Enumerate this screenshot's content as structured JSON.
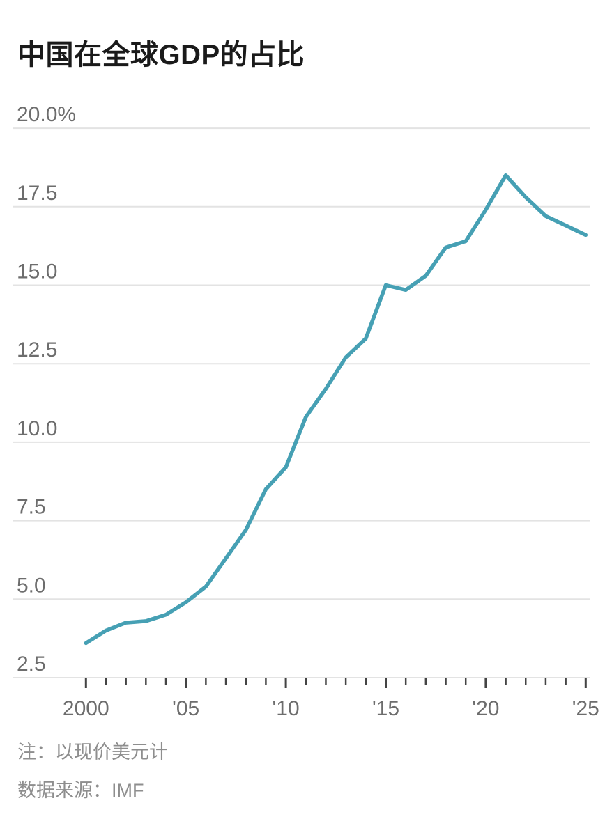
{
  "title": "中国在全球GDP的占比",
  "notes": {
    "note": "注：以现价美元计",
    "source": "数据来源：IMF"
  },
  "colors": {
    "line": "#46a0b4",
    "grid": "#e3e3e3",
    "tick": "#444444",
    "axis_label": "#6d6d6d",
    "title_text": "#1a1a1a",
    "footnote_text": "#8e8e8e"
  },
  "chart_data": {
    "type": "line",
    "title": "中国在全球GDP的占比",
    "unit": "%",
    "x": [
      2000,
      2001,
      2002,
      2003,
      2004,
      2005,
      2006,
      2007,
      2008,
      2009,
      2010,
      2011,
      2012,
      2013,
      2014,
      2015,
      2016,
      2017,
      2018,
      2019,
      2020,
      2021,
      2022,
      2023,
      2024,
      2025
    ],
    "values": [
      3.6,
      4.0,
      4.25,
      4.3,
      4.5,
      4.9,
      5.4,
      6.3,
      7.2,
      8.5,
      9.2,
      10.8,
      11.7,
      12.7,
      13.3,
      15.0,
      14.85,
      15.3,
      16.2,
      16.4,
      17.4,
      18.5,
      17.8,
      17.2,
      16.9,
      16.6
    ],
    "xlim": [
      2000,
      2025
    ],
    "ylim": [
      2.5,
      20.0
    ],
    "grid": true,
    "legend": "none",
    "yticks": [
      {
        "value": 20.0,
        "label": "20.0%"
      },
      {
        "value": 17.5,
        "label": "17.5"
      },
      {
        "value": 15.0,
        "label": "15.0"
      },
      {
        "value": 12.5,
        "label": "12.5"
      },
      {
        "value": 10.0,
        "label": "10.0"
      },
      {
        "value": 7.5,
        "label": "7.5"
      },
      {
        "value": 5.0,
        "label": "5.0"
      },
      {
        "value": 2.5,
        "label": "2.5"
      }
    ],
    "xticks_labeled": [
      {
        "value": 2000,
        "label": "2000"
      },
      {
        "value": 2005,
        "label": "'05"
      },
      {
        "value": 2010,
        "label": "'10"
      },
      {
        "value": 2015,
        "label": "'15"
      },
      {
        "value": 2020,
        "label": "'20"
      },
      {
        "value": 2025,
        "label": "'25"
      }
    ],
    "minor_xticks_every": 1
  }
}
